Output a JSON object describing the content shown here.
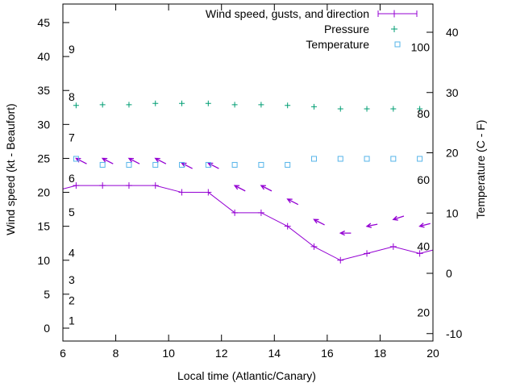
{
  "chart_data": {
    "type": "line",
    "title": "",
    "xlabel": "Local time (Atlantic/Canary)",
    "ylabel": "Wind speed (kt - Beaufort)",
    "y2label": "Temperature (C - F)",
    "xlim": [
      6,
      20
    ],
    "ylim": [
      0,
      48
    ],
    "y2lim": [
      -10,
      45
    ],
    "grid": false,
    "legend_position": "top-right",
    "x_ticks": [
      "6",
      "8",
      "10",
      "12",
      "14",
      "16",
      "18",
      "20"
    ],
    "y_ticks": [
      "0",
      "5",
      "10",
      "15",
      "20",
      "25",
      "30",
      "35",
      "40",
      "45"
    ],
    "y2_ticks": [
      "-10",
      "0",
      "10",
      "20",
      "30",
      "40"
    ],
    "beaufort_labels": [
      {
        "label": "1",
        "y": 1.1
      },
      {
        "label": "2",
        "y": 4.1
      },
      {
        "label": "3",
        "y": 7.1
      },
      {
        "label": "4",
        "y": 11.1
      },
      {
        "label": "5",
        "y": 17.1
      },
      {
        "label": "6",
        "y": 22.1
      },
      {
        "label": "7",
        "y": 28.1
      },
      {
        "label": "8",
        "y": 34.1
      },
      {
        "label": "9",
        "y": 41.1
      }
    ],
    "fahrenheit_labels": [
      {
        "label": "20",
        "t": -6.5
      },
      {
        "label": "40",
        "t": 4.5
      },
      {
        "label": "60",
        "t": 15.5
      },
      {
        "label": "80",
        "t": 26.5
      },
      {
        "label": "100",
        "t": 37.5
      }
    ],
    "series": [
      {
        "name": "Wind speed, gusts, and direction",
        "color": "#9400d3",
        "marker": "plus-line",
        "points": [
          {
            "x": 6.0,
            "y": 20.5
          },
          {
            "x": 6.5,
            "y": 21.0
          },
          {
            "x": 7.5,
            "y": 21.0
          },
          {
            "x": 8.5,
            "y": 21.0
          },
          {
            "x": 9.5,
            "y": 21.0
          },
          {
            "x": 10.5,
            "y": 20.0
          },
          {
            "x": 11.5,
            "y": 20.0
          },
          {
            "x": 12.5,
            "y": 17.0
          },
          {
            "x": 13.5,
            "y": 17.0
          },
          {
            "x": 14.5,
            "y": 15.0
          },
          {
            "x": 15.5,
            "y": 12.0
          },
          {
            "x": 16.5,
            "y": 10.0
          },
          {
            "x": 17.5,
            "y": 11.0
          },
          {
            "x": 18.5,
            "y": 12.0
          },
          {
            "x": 19.5,
            "y": 11.0
          },
          {
            "x": 20.0,
            "y": 11.5
          }
        ]
      },
      {
        "name": "Pressure",
        "color": "#009e73",
        "marker": "plus",
        "points": [
          {
            "x": 6.5,
            "y": 32.8
          },
          {
            "x": 7.5,
            "y": 32.9
          },
          {
            "x": 8.5,
            "y": 32.9
          },
          {
            "x": 9.5,
            "y": 33.1
          },
          {
            "x": 10.5,
            "y": 33.1
          },
          {
            "x": 11.5,
            "y": 33.1
          },
          {
            "x": 12.5,
            "y": 32.9
          },
          {
            "x": 13.5,
            "y": 32.9
          },
          {
            "x": 14.5,
            "y": 32.8
          },
          {
            "x": 15.5,
            "y": 32.6
          },
          {
            "x": 16.5,
            "y": 32.3
          },
          {
            "x": 17.5,
            "y": 32.3
          },
          {
            "x": 18.5,
            "y": 32.3
          },
          {
            "x": 19.5,
            "y": 32.3
          }
        ]
      },
      {
        "name": "Temperature",
        "color": "#56b4e9",
        "marker": "square",
        "axis": "y2",
        "points": [
          {
            "x": 6.5,
            "t": 19.0
          },
          {
            "x": 7.5,
            "t": 18.0
          },
          {
            "x": 8.5,
            "t": 18.0
          },
          {
            "x": 9.5,
            "t": 18.0
          },
          {
            "x": 10.5,
            "t": 18.0
          },
          {
            "x": 11.5,
            "t": 18.0
          },
          {
            "x": 12.5,
            "t": 18.0
          },
          {
            "x": 13.5,
            "t": 18.0
          },
          {
            "x": 14.5,
            "t": 18.0
          },
          {
            "x": 15.5,
            "t": 19.0
          },
          {
            "x": 16.5,
            "t": 19.0
          },
          {
            "x": 17.5,
            "t": 19.0
          },
          {
            "x": 18.5,
            "t": 19.0
          },
          {
            "x": 19.5,
            "t": 19.0
          }
        ]
      }
    ],
    "wind_arrows": {
      "color": "#9400d3",
      "arrows": [
        {
          "x": 6.5,
          "y": 25.0,
          "dx": 0.4,
          "dy": -0.8
        },
        {
          "x": 7.5,
          "y": 25.0,
          "dx": 0.4,
          "dy": -0.8
        },
        {
          "x": 8.5,
          "y": 25.0,
          "dx": 0.4,
          "dy": -0.8
        },
        {
          "x": 9.5,
          "y": 25.0,
          "dx": 0.4,
          "dy": -0.8
        },
        {
          "x": 10.5,
          "y": 24.3,
          "dx": 0.4,
          "dy": -0.8
        },
        {
          "x": 11.5,
          "y": 24.3,
          "dx": 0.4,
          "dy": -0.8
        },
        {
          "x": 12.5,
          "y": 21.0,
          "dx": 0.4,
          "dy": -0.8
        },
        {
          "x": 13.5,
          "y": 21.0,
          "dx": 0.4,
          "dy": -0.8
        },
        {
          "x": 14.5,
          "y": 19.0,
          "dx": 0.4,
          "dy": -0.8
        },
        {
          "x": 15.5,
          "y": 16.0,
          "dx": 0.4,
          "dy": -0.8
        },
        {
          "x": 16.5,
          "y": 14.0,
          "dx": 0.4,
          "dy": 0.0
        },
        {
          "x": 17.5,
          "y": 15.0,
          "dx": 0.4,
          "dy": 0.3
        },
        {
          "x": 18.5,
          "y": 16.0,
          "dx": 0.4,
          "dy": 0.5
        },
        {
          "x": 19.5,
          "y": 15.0,
          "dx": 0.4,
          "dy": 0.4
        }
      ]
    }
  }
}
